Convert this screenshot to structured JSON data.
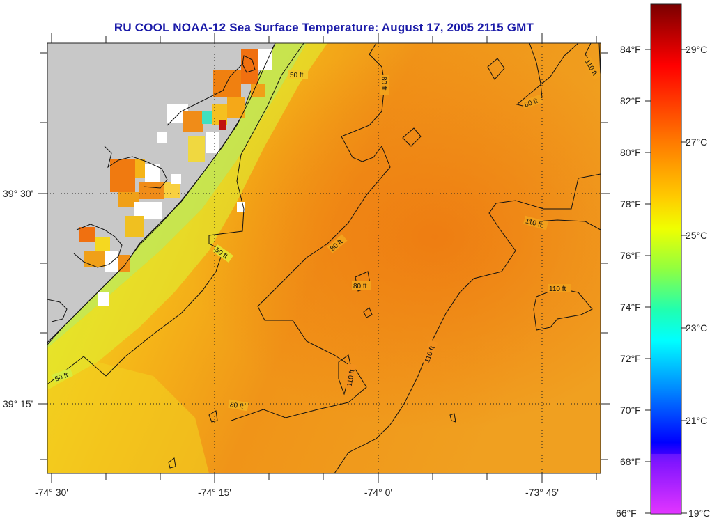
{
  "title": "RU COOL  NOAA-12  Sea Surface Temperature:  August 17, 2005 2115 GMT",
  "lon_labels": [
    "-74° 30'",
    "-74° 15'",
    "-74° 0'",
    "-73° 45'"
  ],
  "lat_labels": [
    "39° 30'",
    "39° 15'"
  ],
  "colorbar": {
    "f_labels": [
      "84°F",
      "82°F",
      "80°F",
      "78°F",
      "76°F",
      "74°F",
      "72°F",
      "70°F",
      "68°F",
      "66°F"
    ],
    "c_labels": [
      "29°C",
      "27°C",
      "25°C",
      "23°C",
      "21°C",
      "19°C"
    ],
    "colors": [
      "#8b0000",
      "#ff0000",
      "#ff6600",
      "#ffaa00",
      "#ffdd00",
      "#e6ff00",
      "#80ff40",
      "#00ff99",
      "#00ffff",
      "#0080ff",
      "#0000ff",
      "#8000ff",
      "#ff40ff"
    ]
  },
  "contour_labels": [
    "50 ft",
    "80 ft",
    "110 ft"
  ],
  "contour_label_instances": [
    {
      "text": "50 ft"
    },
    {
      "text": "50 ft"
    },
    {
      "text": "50 ft"
    },
    {
      "text": "80 ft"
    },
    {
      "text": "80 ft"
    },
    {
      "text": "80 ft"
    },
    {
      "text": "80 ft"
    },
    {
      "text": "80 ft"
    },
    {
      "text": "110 ft"
    },
    {
      "text": "110 ft"
    },
    {
      "text": "110 ft"
    },
    {
      "text": "110 ft"
    },
    {
      "text": "110 ft"
    }
  ],
  "land_color": "#c8c8c8",
  "ocean_colors": {
    "nearshore": "#d8f050",
    "mid": "#f5c020",
    "offshore": "#f08c18",
    "warm": "#ee7a10"
  }
}
